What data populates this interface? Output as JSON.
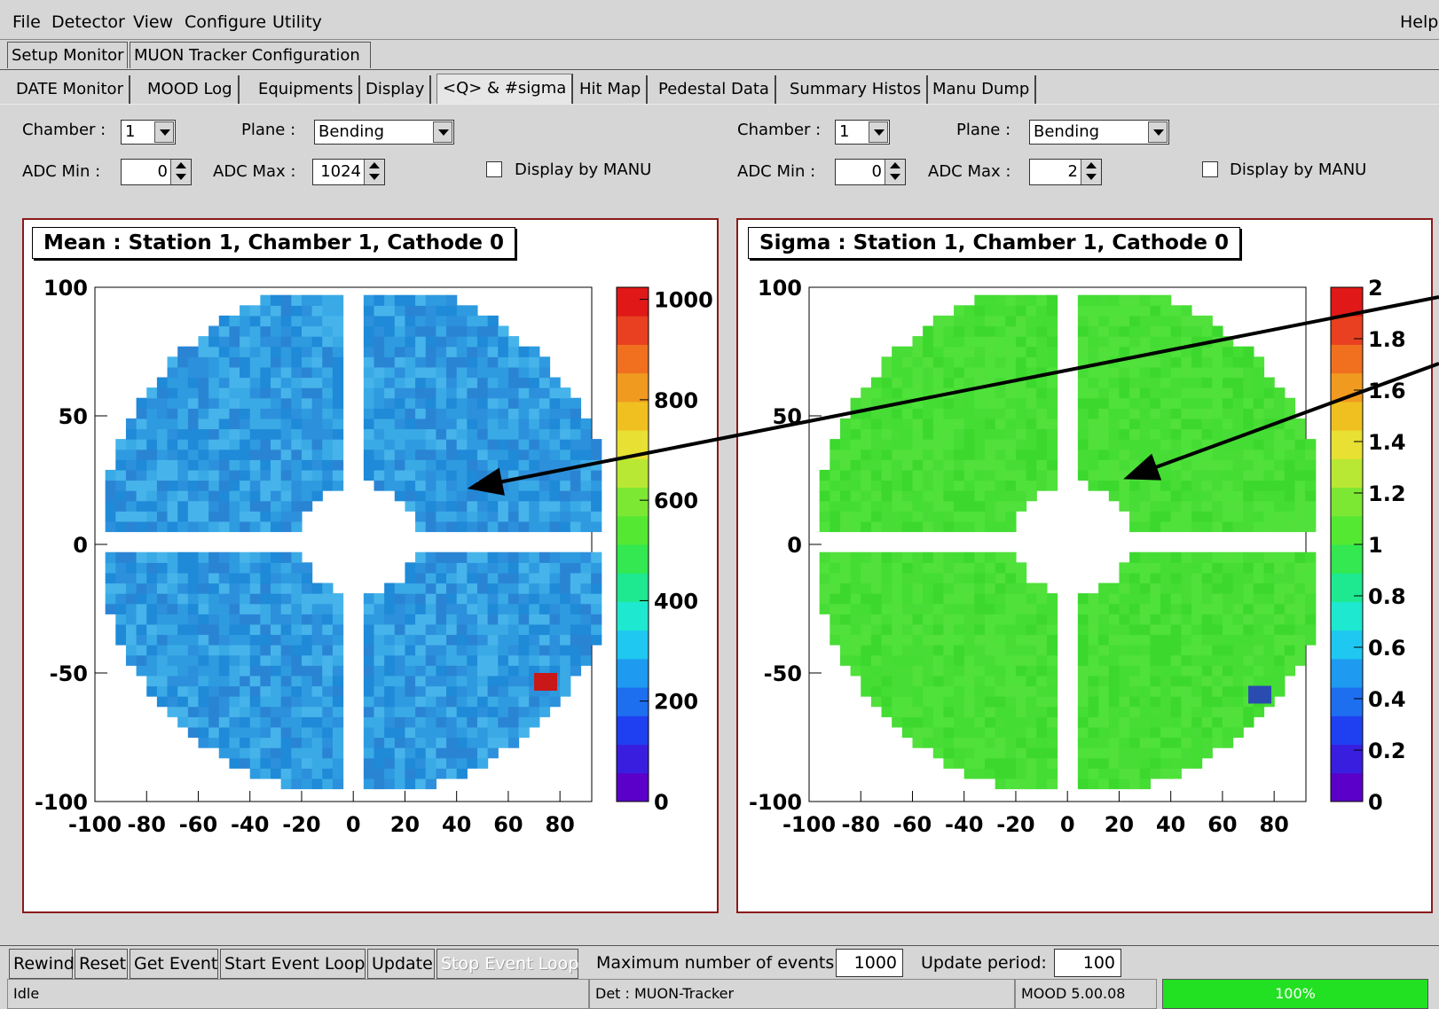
{
  "menu": {
    "file": "File",
    "detector": "Detector",
    "view": "View",
    "configure": "Configure",
    "utility": "Utility",
    "help": "Help"
  },
  "top_tabs": [
    "Setup Monitor",
    "MUON Tracker Configuration"
  ],
  "sub_tabs": [
    "DATE Monitor",
    "MOOD Log",
    "Equipments",
    "Display",
    "<Q> & #sigma",
    "Hit Map",
    "Pedestal Data",
    "Summary Histos",
    "Manu Dump"
  ],
  "active_sub_tab": "<Q> & #sigma",
  "left_controls": {
    "chamber_label": "Chamber :",
    "chamber_value": "1",
    "plane_label": "Plane :",
    "plane_value": "Bending",
    "adc_min_label": "ADC Min :",
    "adc_min_value": "0",
    "adc_max_label": "ADC Max :",
    "adc_max_value": "1024",
    "display_by_manu": "Display by MANU"
  },
  "right_controls": {
    "chamber_label": "Chamber :",
    "chamber_value": "1",
    "plane_label": "Plane :",
    "plane_value": "Bending",
    "adc_min_label": "ADC Min :",
    "adc_min_value": "0",
    "adc_max_label": "ADC Max :",
    "adc_max_value": "2",
    "display_by_manu": "Display by MANU"
  },
  "chart_data": [
    {
      "type": "heatmap",
      "title": "Mean : Station 1, Chamber 1, Cathode 0",
      "xlim": [
        -100,
        100
      ],
      "ylim": [
        -100,
        100
      ],
      "x_ticks": [
        "-100",
        "-80",
        "-60",
        "-40",
        "-20",
        "0",
        "20",
        "40",
        "60",
        "80"
      ],
      "y_ticks": [
        "100",
        "50",
        "0",
        "-50",
        "-100"
      ],
      "z_range": [
        0,
        1024
      ],
      "z_ticks": [
        "1000",
        "800",
        "600",
        "400",
        "200",
        "0"
      ],
      "dominant_value": 300,
      "palette": "rainbow",
      "colors": {
        "fill": "#2e9be0",
        "hot": "#e01818"
      }
    },
    {
      "type": "heatmap",
      "title": "Sigma : Station 1, Chamber 1, Cathode 0",
      "xlim": [
        -100,
        100
      ],
      "ylim": [
        -100,
        100
      ],
      "x_ticks": [
        "-100",
        "-80",
        "-60",
        "-40",
        "-20",
        "0",
        "20",
        "40",
        "60",
        "80"
      ],
      "y_ticks": [
        "100",
        "50",
        "0",
        "-50",
        "-100"
      ],
      "z_range": [
        0,
        2
      ],
      "z_ticks": [
        "2",
        "1.8",
        "1.6",
        "1.4",
        "1.2",
        "1",
        "0.8",
        "0.6",
        "0.4",
        "0.2",
        "0"
      ],
      "dominant_value": 1.0,
      "palette": "rainbow",
      "colors": {
        "fill": "#44dd33",
        "cold": "#2244aa"
      }
    }
  ],
  "bottom": {
    "rewind": "Rewind",
    "reset": "Reset",
    "get_event": "Get Event",
    "start_event_loop": "Start Event Loop",
    "update": "Update",
    "stop_event_loop": "Stop Event Loop",
    "max_events_label": "Maximum number of events:",
    "max_events_value": "1000",
    "update_period_label": "Update period:",
    "update_period_value": "100"
  },
  "status": {
    "state": "Idle",
    "detector": "Det : MUON-Tracker",
    "version": "MOOD 5.00.08",
    "progress_text": "100%",
    "progress": 1.0
  }
}
